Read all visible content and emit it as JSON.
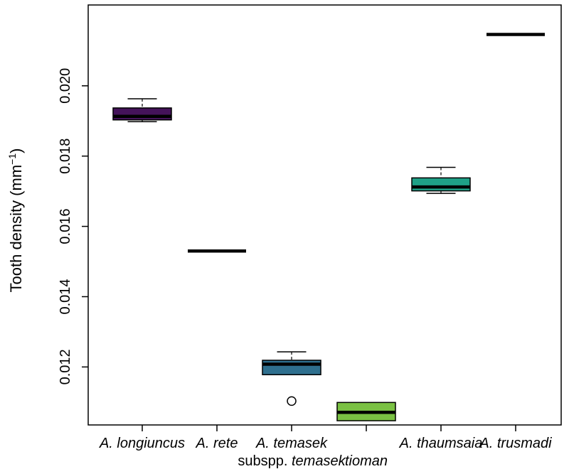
{
  "chart_data": {
    "type": "boxplot",
    "ylabel": "Tooth density",
    "ylabel_unit": "(mm",
    "ylabel_unit_sup": "−1",
    "ylabel_unit_close": ")",
    "ylim": [
      0.01035,
      0.0223
    ],
    "yticks": [
      "0.012",
      "0.014",
      "0.016",
      "0.018",
      "0.020"
    ],
    "ytick_values": [
      0.012,
      0.014,
      0.016,
      0.018,
      0.02
    ],
    "categories": [
      {
        "id": "longiuncus",
        "line1": "A. longiuncus",
        "line2": ""
      },
      {
        "id": "rete",
        "line1": "A. rete",
        "line2_plain": "",
        "line2": ""
      },
      {
        "id": "temasek",
        "line1": "A. temasek",
        "line2_plain": "subspp.",
        "line2": "temasek"
      },
      {
        "id": "tioman",
        "line1": "",
        "line2": "tioman"
      },
      {
        "id": "thaumsaia",
        "line1": "A. thaumsaia",
        "line2": ""
      },
      {
        "id": "trusmadi",
        "line1": "A. trusmadi",
        "line2": ""
      }
    ],
    "series": [
      {
        "category": "A. longiuncus",
        "color": "#44135a",
        "whisker_low": 0.01898,
        "q1": 0.01903,
        "median": 0.01913,
        "q3": 0.01937,
        "whisker_high": 0.01963,
        "outliers": []
      },
      {
        "category": "A. rete",
        "color": "#000000",
        "whisker_low": 0.0153,
        "q1": 0.0153,
        "median": 0.0153,
        "q3": 0.0153,
        "whisker_high": 0.0153,
        "outliers": []
      },
      {
        "category": "A. temasek subspp. temasek",
        "color": "#2e6f8e",
        "whisker_low": 0.01178,
        "q1": 0.01178,
        "median": 0.01208,
        "q3": 0.01219,
        "whisker_high": 0.01243,
        "outliers": [
          0.01103
        ]
      },
      {
        "category": "tioman",
        "color": "#7ac143",
        "whisker_low": 0.01047,
        "q1": 0.01047,
        "median": 0.01071,
        "q3": 0.01099,
        "whisker_high": 0.01099,
        "outliers": []
      },
      {
        "category": "A. thaumsaia",
        "color": "#1fa187",
        "whisker_low": 0.01694,
        "q1": 0.01701,
        "median": 0.01712,
        "q3": 0.01738,
        "whisker_high": 0.01768,
        "outliers": []
      },
      {
        "category": "A. trusmadi",
        "color": "#000000",
        "whisker_low": 0.02146,
        "q1": 0.02146,
        "median": 0.02146,
        "q3": 0.02146,
        "whisker_high": 0.02146,
        "outliers": []
      }
    ],
    "grid": false,
    "legend": "none"
  }
}
